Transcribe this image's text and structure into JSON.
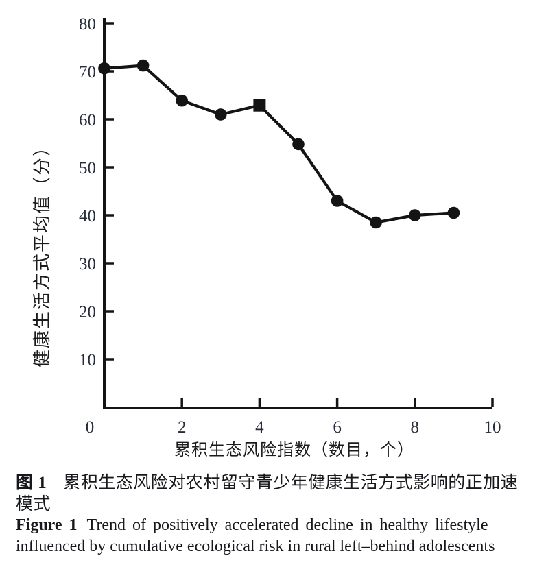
{
  "figure": {
    "caption_zh": {
      "label": "图 1",
      "line1": "累积生态风险对农村留守青少年健康生活方式影响的正加速",
      "line2": "模式"
    },
    "caption_en": {
      "label": "Figure 1",
      "line1": "Trend of positively accelerated decline in healthy lifestyle",
      "line2": "influenced by cumulative ecological risk in rural left–behind adolescents"
    }
  },
  "chart_data": {
    "type": "line",
    "title": "",
    "xlabel": "累积生态风险指数（数目，个）",
    "ylabel": "健康生活方式平均值（分）",
    "xlim": [
      0,
      10
    ],
    "ylim": [
      0,
      80
    ],
    "x_ticks": [
      0,
      2,
      4,
      6,
      8,
      10
    ],
    "y_ticks": [
      10,
      20,
      30,
      40,
      50,
      60,
      70,
      80
    ],
    "grid": false,
    "legend": "none",
    "series_color": "#141414",
    "x": [
      0,
      1,
      2,
      3,
      4,
      5,
      6,
      7,
      8,
      9
    ],
    "y": [
      70.6,
      71.2,
      63.9,
      61.0,
      62.9,
      54.8,
      43.0,
      38.5,
      40.0,
      40.5
    ],
    "markers": [
      "circle",
      "circle",
      "circle",
      "circle",
      "square",
      "circle",
      "circle",
      "circle",
      "circle",
      "circle"
    ]
  }
}
